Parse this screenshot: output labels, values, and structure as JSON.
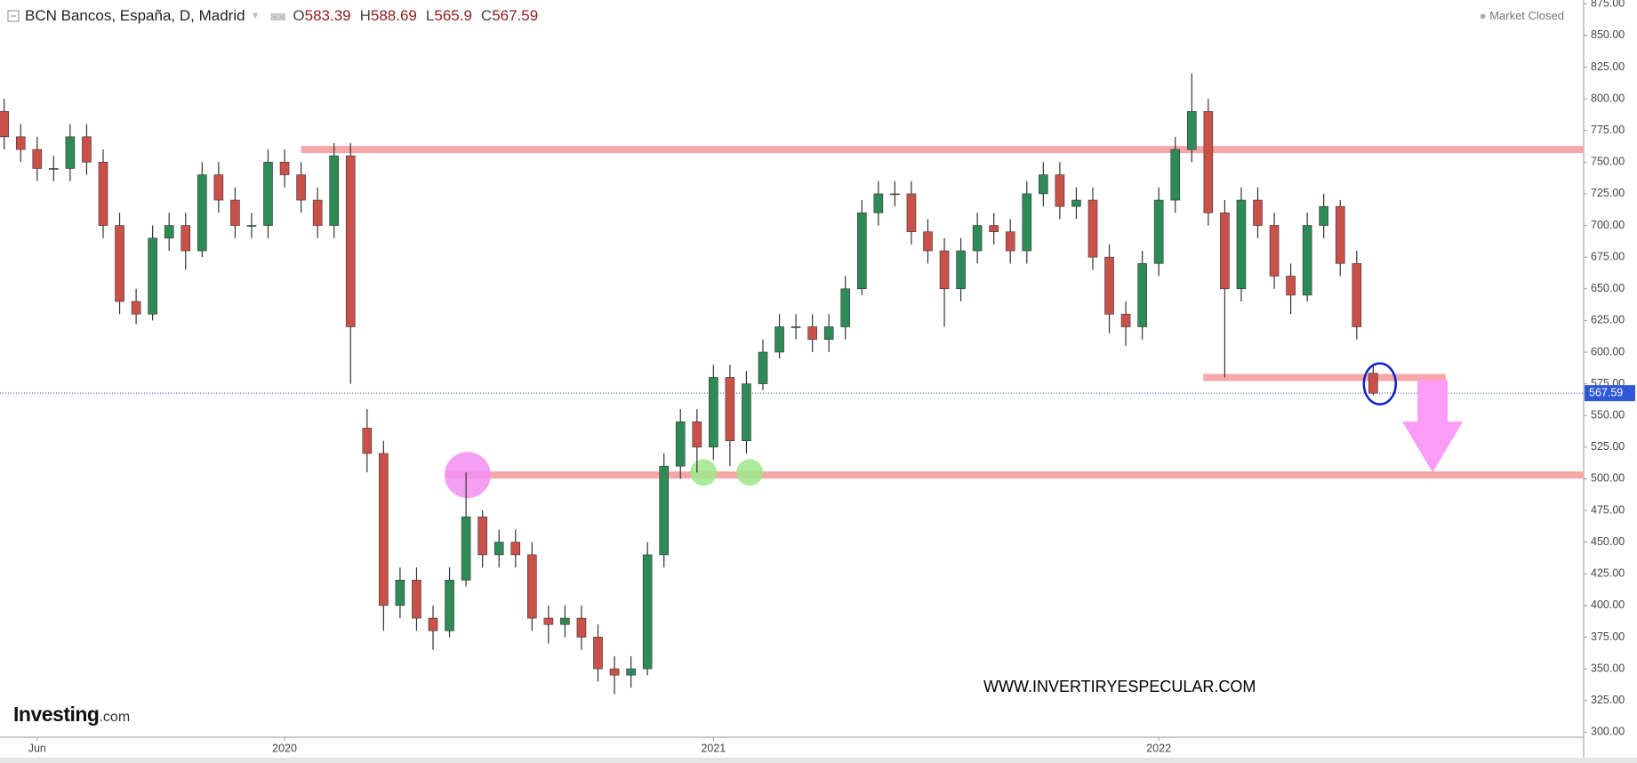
{
  "chart_data": {
    "type": "candlestick",
    "title": "BCN Bancos, España, D, Madrid",
    "ohlc_labels": [
      "O",
      "H",
      "L",
      "C"
    ],
    "status": "Market Closed",
    "watermark": "WWW.INVERTIRYESPECULAR.COM",
    "logo": {
      "name": "Investing",
      "suffix": ".com"
    },
    "categories": [
      null,
      null,
      "Jun",
      null,
      null,
      null,
      null,
      null,
      null,
      null,
      null,
      null,
      null,
      null,
      null,
      null,
      null,
      "2020",
      null,
      null,
      null,
      null,
      null,
      null,
      null,
      null,
      null,
      null,
      null,
      null,
      null,
      null,
      null,
      null,
      null,
      null,
      null,
      null,
      null,
      null,
      null,
      null,
      null,
      "2021",
      null,
      null,
      null,
      null,
      null,
      null,
      null,
      null,
      null,
      null,
      null,
      null,
      null,
      null,
      null,
      null,
      null,
      null,
      null,
      null,
      null,
      null,
      null,
      null,
      null,
      null,
      "2022",
      null,
      null,
      null,
      null,
      null,
      null,
      null,
      null,
      null,
      null,
      null,
      null,
      null
    ],
    "open": [
      790,
      770,
      760,
      745,
      745,
      770,
      750,
      700,
      640,
      630,
      690,
      700,
      680,
      740,
      720,
      700,
      700,
      750,
      740,
      720,
      700,
      755,
      540,
      520,
      400,
      420,
      390,
      380,
      420,
      470,
      440,
      450,
      440,
      390,
      385,
      390,
      375,
      350,
      345,
      350,
      440,
      510,
      545,
      525,
      580,
      530,
      575,
      600,
      620,
      620,
      610,
      620,
      650,
      710,
      725,
      725,
      695,
      680,
      650,
      680,
      700,
      695,
      680,
      725,
      740,
      715,
      720,
      675,
      630,
      620,
      670,
      720,
      760,
      790,
      710,
      650,
      720,
      700,
      660,
      645,
      700,
      715,
      670,
      583.39
    ],
    "high": [
      800,
      780,
      770,
      755,
      780,
      780,
      760,
      710,
      650,
      700,
      710,
      710,
      750,
      750,
      730,
      710,
      760,
      760,
      750,
      730,
      765,
      765,
      555,
      530,
      430,
      430,
      400,
      430,
      505,
      475,
      460,
      460,
      450,
      400,
      400,
      400,
      385,
      360,
      360,
      450,
      520,
      555,
      555,
      590,
      590,
      585,
      610,
      630,
      630,
      630,
      630,
      660,
      720,
      735,
      735,
      735,
      705,
      690,
      690,
      710,
      710,
      705,
      735,
      750,
      750,
      730,
      730,
      685,
      640,
      680,
      730,
      770,
      820,
      800,
      720,
      730,
      730,
      710,
      670,
      710,
      725,
      720,
      680,
      588.69
    ],
    "low": [
      760,
      750,
      735,
      735,
      735,
      740,
      690,
      630,
      622,
      625,
      680,
      665,
      675,
      710,
      690,
      690,
      690,
      730,
      710,
      690,
      690,
      575,
      505,
      380,
      390,
      380,
      365,
      375,
      415,
      430,
      430,
      430,
      380,
      370,
      375,
      365,
      340,
      330,
      335,
      345,
      430,
      500,
      505,
      515,
      510,
      520,
      570,
      595,
      610,
      600,
      600,
      610,
      645,
      700,
      715,
      685,
      670,
      620,
      640,
      670,
      685,
      670,
      670,
      715,
      705,
      705,
      665,
      615,
      605,
      610,
      660,
      710,
      750,
      700,
      580,
      640,
      690,
      650,
      630,
      640,
      690,
      660,
      610,
      565.9
    ],
    "close": [
      770,
      760,
      745,
      745,
      770,
      750,
      700,
      640,
      630,
      690,
      700,
      680,
      740,
      720,
      700,
      700,
      750,
      740,
      720,
      700,
      755,
      620,
      520,
      400,
      420,
      390,
      380,
      420,
      470,
      440,
      450,
      440,
      390,
      385,
      390,
      375,
      350,
      345,
      350,
      440,
      510,
      545,
      525,
      580,
      530,
      575,
      600,
      620,
      620,
      610,
      620,
      650,
      710,
      725,
      725,
      695,
      680,
      650,
      680,
      700,
      695,
      680,
      725,
      740,
      715,
      720,
      675,
      630,
      620,
      670,
      720,
      760,
      790,
      710,
      650,
      720,
      700,
      660,
      645,
      700,
      715,
      670,
      620,
      567.59
    ],
    "up_color": "#2e8b57",
    "down_color": "#c9514a",
    "last_price_color": "#2f58d6",
    "ylim": [
      296,
      878
    ],
    "yticks": [
      {
        "value": 300,
        "label": "300.00"
      },
      {
        "value": 325,
        "label": "325.00"
      },
      {
        "value": 350,
        "label": "350.00"
      },
      {
        "value": 375,
        "label": "375.00"
      },
      {
        "value": 400,
        "label": "400.00"
      },
      {
        "value": 425,
        "label": "425.00"
      },
      {
        "value": 450,
        "label": "450.00"
      },
      {
        "value": 475,
        "label": "475.00"
      },
      {
        "value": 500,
        "label": "500.00"
      },
      {
        "value": 525,
        "label": "525.00"
      },
      {
        "value": 550,
        "label": "550.00"
      },
      {
        "value": 575,
        "label": "575.00"
      },
      {
        "value": 600,
        "label": "600.00"
      },
      {
        "value": 625,
        "label": "625.00"
      },
      {
        "value": 650,
        "label": "650.00"
      },
      {
        "value": 675,
        "label": "675.00"
      },
      {
        "value": 700,
        "label": "700.00"
      },
      {
        "value": 725,
        "label": "725.00"
      },
      {
        "value": 750,
        "label": "750.00"
      },
      {
        "value": 775,
        "label": "775.00"
      },
      {
        "value": 800,
        "label": "800.00"
      },
      {
        "value": 825,
        "label": "825.00"
      },
      {
        "value": 850,
        "label": "850.00"
      },
      {
        "value": 875,
        "label": "875.00"
      }
    ],
    "grid": false,
    "annotations": {
      "hlines": [
        {
          "value": 760,
          "from": 18,
          "to": 96,
          "color": "#f7a7a7"
        },
        {
          "value": 503,
          "from": 26.8,
          "to": 96,
          "color": "#f7a7a7"
        },
        {
          "value": 580,
          "from": 72.7,
          "to": 87.4,
          "color": "#f7a7a7"
        }
      ],
      "circles": [
        {
          "at": 28.1,
          "value": 503,
          "color": "#f28ff0",
          "size": 26
        },
        {
          "at": 42.4,
          "value": 505,
          "color": "#9de88a",
          "size": 15
        },
        {
          "at": 45.2,
          "value": 505,
          "color": "#9de88a",
          "size": 15
        }
      ],
      "ellipse": {
        "at": 83.4,
        "value": 575,
        "color": "#1020c8"
      },
      "arrow": {
        "at": 86.6,
        "from": 578,
        "to": 505,
        "color": "#fb9cf8"
      }
    }
  }
}
